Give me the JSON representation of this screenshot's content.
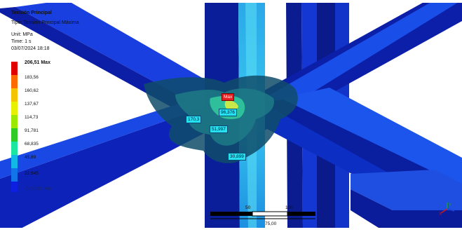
{
  "header": {
    "title": "Tensión Principal",
    "type": "Tipo: Tensión Principal Máxima",
    "unit": "Unit: MPa",
    "time": "Time: 1 s",
    "date": "03/07/2024 18:18"
  },
  "legend": {
    "max_label": "206,51 Max",
    "levels": [
      "183,56",
      "160,62",
      "137,67",
      "114,73",
      "91,781",
      "68,835",
      "45,89",
      "22,945"
    ],
    "min_label": "-0,00101 Min",
    "colors": [
      "#e10000",
      "#ff6a00",
      "#f5c400",
      "#e7f000",
      "#9be800",
      "#2ecb27",
      "#1ce6a0",
      "#14b8e6",
      "#1274e8",
      "#0d1fe0"
    ]
  },
  "probes": {
    "max_tag": "Max",
    "value_1": "96,376",
    "value_2": "170,3",
    "value_3": "51,997",
    "value_4": "30,899"
  },
  "scale_bar": {
    "label_50": "50",
    "label_100": "100",
    "label_75": "75,00"
  },
  "triad": {
    "axis_x": "X",
    "axis_y": "Y"
  }
}
